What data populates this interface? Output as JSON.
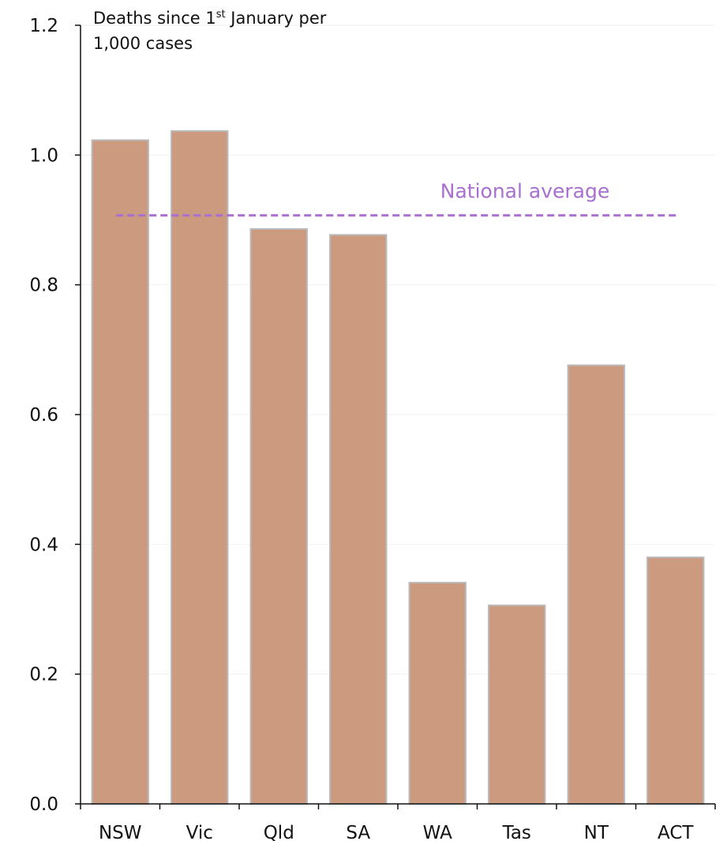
{
  "chart_data": {
    "type": "bar",
    "ylabel": {
      "prefix": "Deaths since 1",
      "superscript": "st",
      "suffix": " January per",
      "line2": "1,000 cases"
    },
    "categories": [
      "NSW",
      "Vic",
      "Qld",
      "SA",
      "WA",
      "Tas",
      "NT",
      "ACT"
    ],
    "values": [
      1.023,
      1.037,
      0.886,
      0.877,
      0.341,
      0.306,
      0.676,
      0.38
    ],
    "ylim": [
      0,
      1.2
    ],
    "yticks": [
      "0.0",
      "0.2",
      "0.4",
      "0.6",
      "0.8",
      "1.0",
      "1.2"
    ],
    "grid": true,
    "reference_line": {
      "label": "National average",
      "value": 0.907
    },
    "colors": {
      "bar_fill": "#cc9a7f",
      "bar_stroke": "#b9b9b9",
      "reference_line": "#a86fd1",
      "axis": "#111111",
      "grid": "#f2f2f2"
    }
  }
}
